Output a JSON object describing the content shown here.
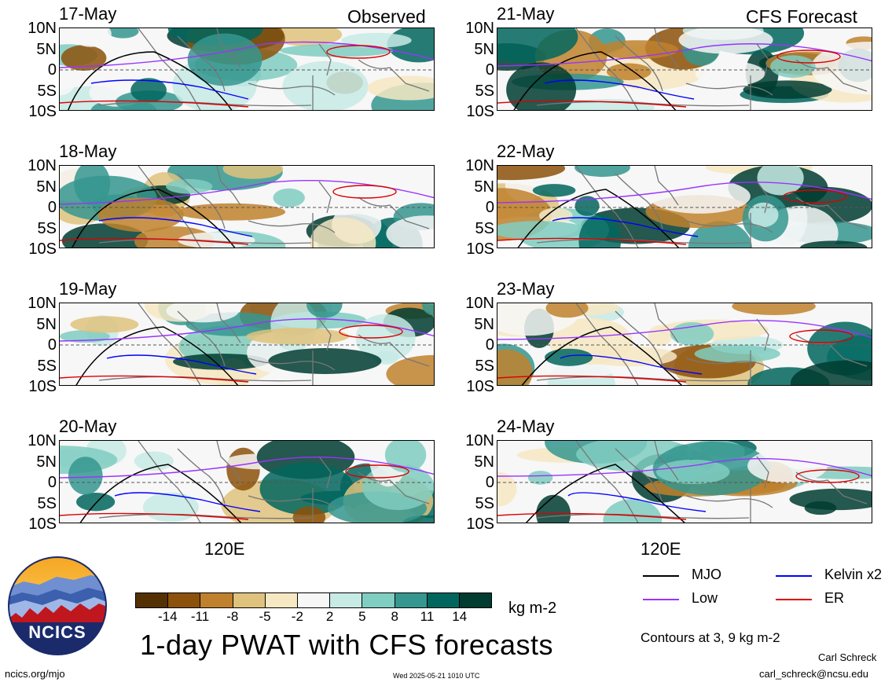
{
  "header": {
    "left": "Observed",
    "right": "CFS Forecast"
  },
  "panels": {
    "left": [
      {
        "date": "17-May"
      },
      {
        "date": "18-May"
      },
      {
        "date": "19-May"
      },
      {
        "date": "20-May"
      }
    ],
    "right": [
      {
        "date": "21-May"
      },
      {
        "date": "22-May"
      },
      {
        "date": "23-May"
      },
      {
        "date": "24-May"
      }
    ]
  },
  "lat_labels": [
    "10N",
    "5N",
    "0",
    "5S",
    "10S"
  ],
  "lon_label": "120E",
  "colorbar": {
    "ticks": [
      "-14",
      "-11",
      "-8",
      "-5",
      "-2",
      "2",
      "5",
      "8",
      "11",
      "14"
    ],
    "colors": [
      "#543005",
      "#8c510a",
      "#bf812d",
      "#dfc27d",
      "#f6e8c3",
      "#f7f7f7",
      "#c7eae5",
      "#80cdc1",
      "#35978f",
      "#01665e",
      "#003c30"
    ],
    "units": "kg m-2"
  },
  "legend": [
    {
      "label": "MJO",
      "color": "#000000"
    },
    {
      "label": "Kelvin x2",
      "color": "#0000ff"
    },
    {
      "label": "Low",
      "color": "#9933ff"
    },
    {
      "label": "ER",
      "color": "#dd0000"
    }
  ],
  "contours_note": "Contours at 3, 9 kg m-2",
  "title": "1-day PWAT with CFS forecasts",
  "logo_text": "NCICS",
  "footer": {
    "url": "ncics.org/mjo",
    "timestamp": "Wed 2025-05-21 1010 UTC",
    "author": "Carl Schreck",
    "email": "carl_schreck@ncsu.edu"
  }
}
